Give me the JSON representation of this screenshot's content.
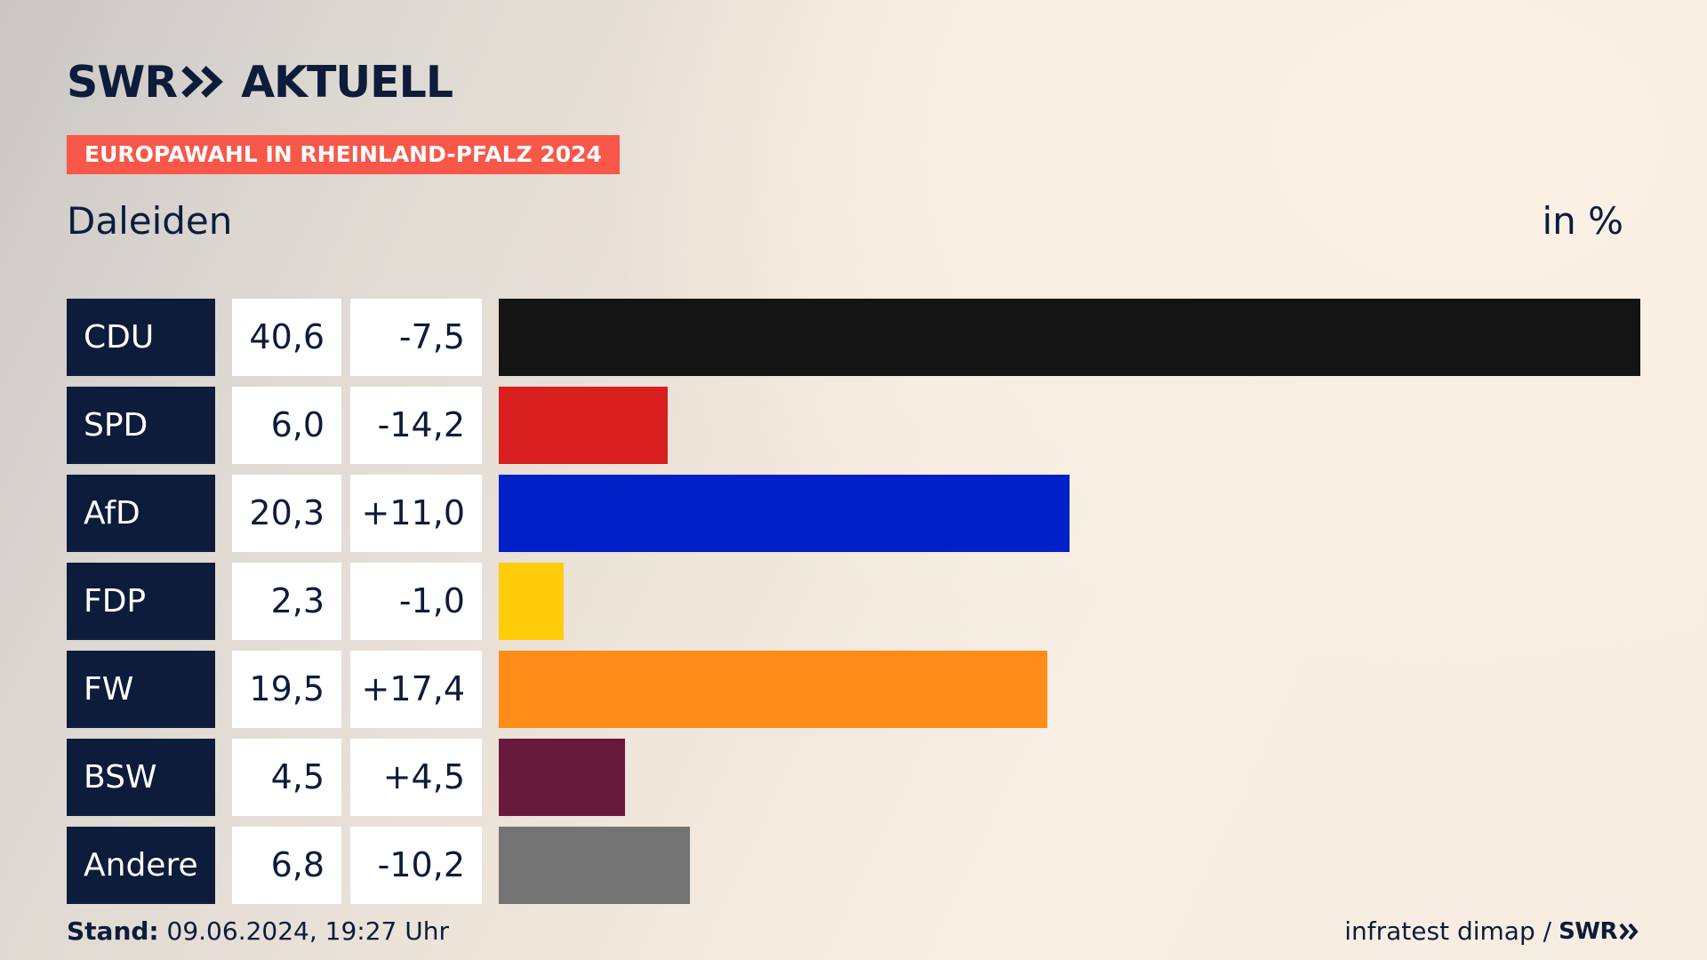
{
  "header": {
    "brand_left": "SWR",
    "brand_right": "AKTUELL",
    "tag": "EUROPAWAHL IN RHEINLAND-PFALZ 2024",
    "region": "Daleiden",
    "unit": "in %"
  },
  "chart_data": {
    "type": "bar",
    "orientation": "horizontal",
    "title": "EUROPAWAHL IN RHEINLAND-PFALZ 2024",
    "subtitle": "Daleiden",
    "unit": "in %",
    "xlim": [
      0,
      40.6
    ],
    "categories": [
      "CDU",
      "SPD",
      "AfD",
      "FDP",
      "FW",
      "BSW",
      "Andere"
    ],
    "values": [
      40.6,
      6.0,
      20.3,
      2.3,
      19.5,
      4.5,
      6.8
    ],
    "value_labels": [
      "40,6",
      "6,0",
      "20,3",
      "2,3",
      "19,5",
      "4,5",
      "6,8"
    ],
    "diff_labels": [
      "-7,5",
      "-14,2",
      "+11,0",
      "-1,0",
      "+17,4",
      "+4,5",
      "-10,2"
    ],
    "colors": [
      "#141414",
      "#d81e1e",
      "#0020c8",
      "#ffcc0a",
      "#ff8c19",
      "#681a3c",
      "#737373"
    ]
  },
  "footer": {
    "stand_label": "Stand:",
    "stand_value": "09.06.2024, 19:27 Uhr",
    "source": "infratest dimap /",
    "source_brand": "SWR"
  }
}
